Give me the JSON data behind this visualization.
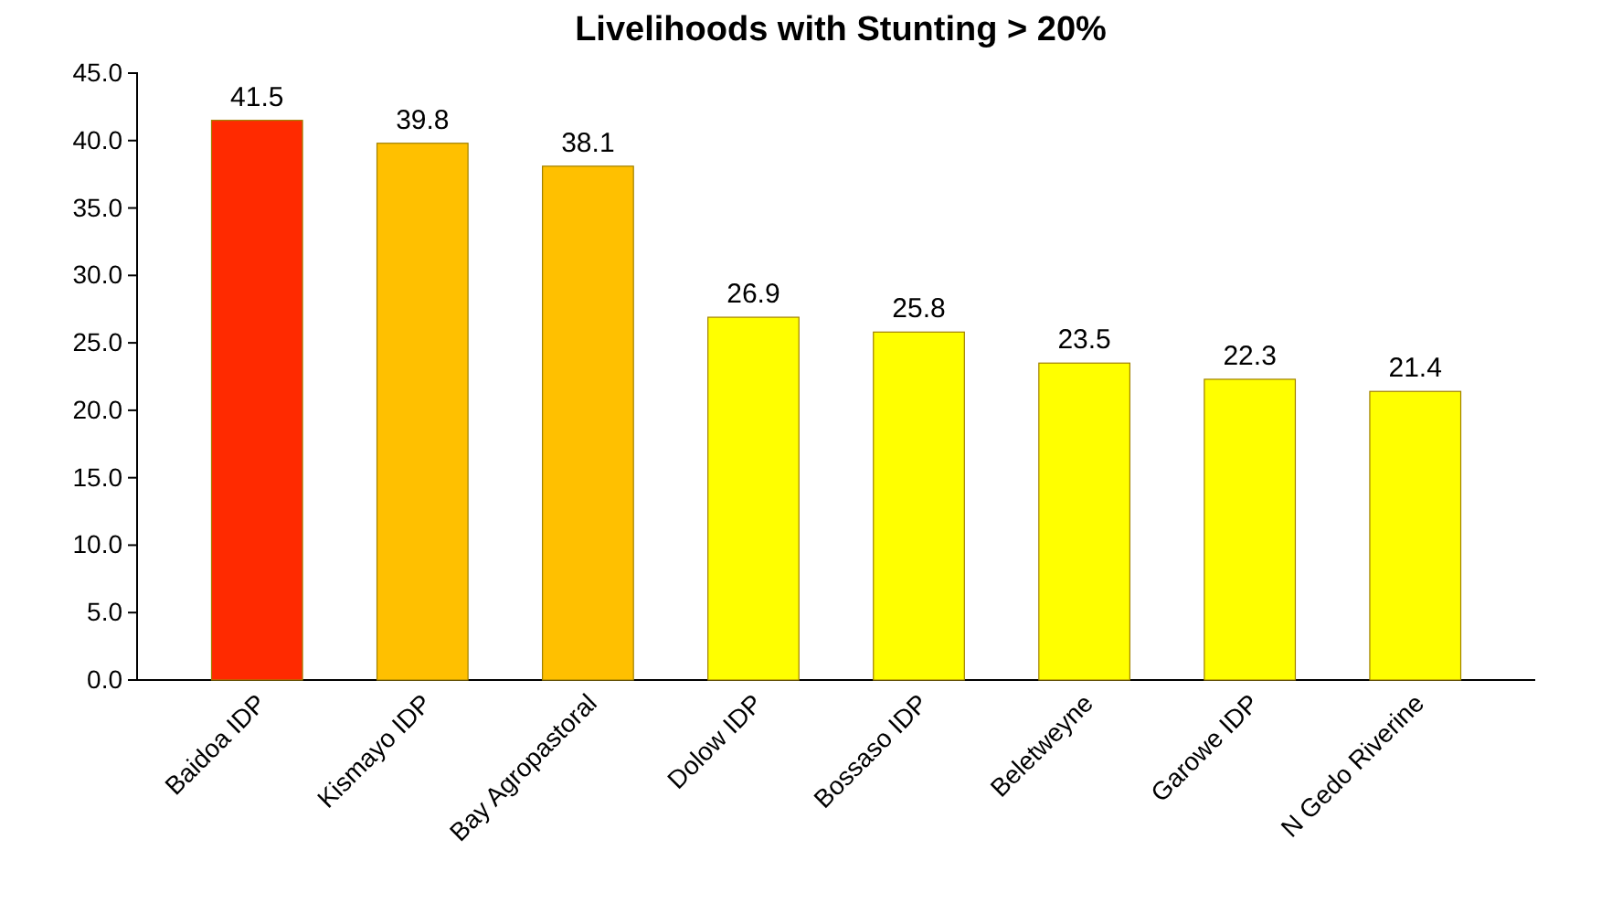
{
  "chart_data": {
    "type": "bar",
    "title": "Livelihoods with Stunting > 20%",
    "categories": [
      "Baidoa IDP",
      "Kismayo IDP",
      "Bay Agropastoral",
      "Dolow IDP",
      "Bossaso IDP",
      "Beletweyne",
      "Garowe IDP",
      "N Gedo Riverine"
    ],
    "values": [
      41.5,
      39.8,
      38.1,
      26.9,
      25.8,
      23.5,
      22.3,
      21.4
    ],
    "colors": [
      "#ff2a00",
      "#ffc000",
      "#ffc000",
      "#ffff00",
      "#ffff00",
      "#ffff00",
      "#ffff00",
      "#ffff00"
    ],
    "ylim": [
      0,
      45
    ],
    "yticks": [
      {
        "value": 0,
        "label": "0.0"
      },
      {
        "value": 5,
        "label": "5.0"
      },
      {
        "value": 10,
        "label": "10.0"
      },
      {
        "value": 15,
        "label": "15.0"
      },
      {
        "value": 20,
        "label": "20.0"
      },
      {
        "value": 25,
        "label": "25.0"
      },
      {
        "value": 30,
        "label": "30.0"
      },
      {
        "value": 35,
        "label": "35.0"
      },
      {
        "value": 40,
        "label": "40.0"
      },
      {
        "value": 45,
        "label": "45.0"
      }
    ],
    "data_labels": true
  }
}
